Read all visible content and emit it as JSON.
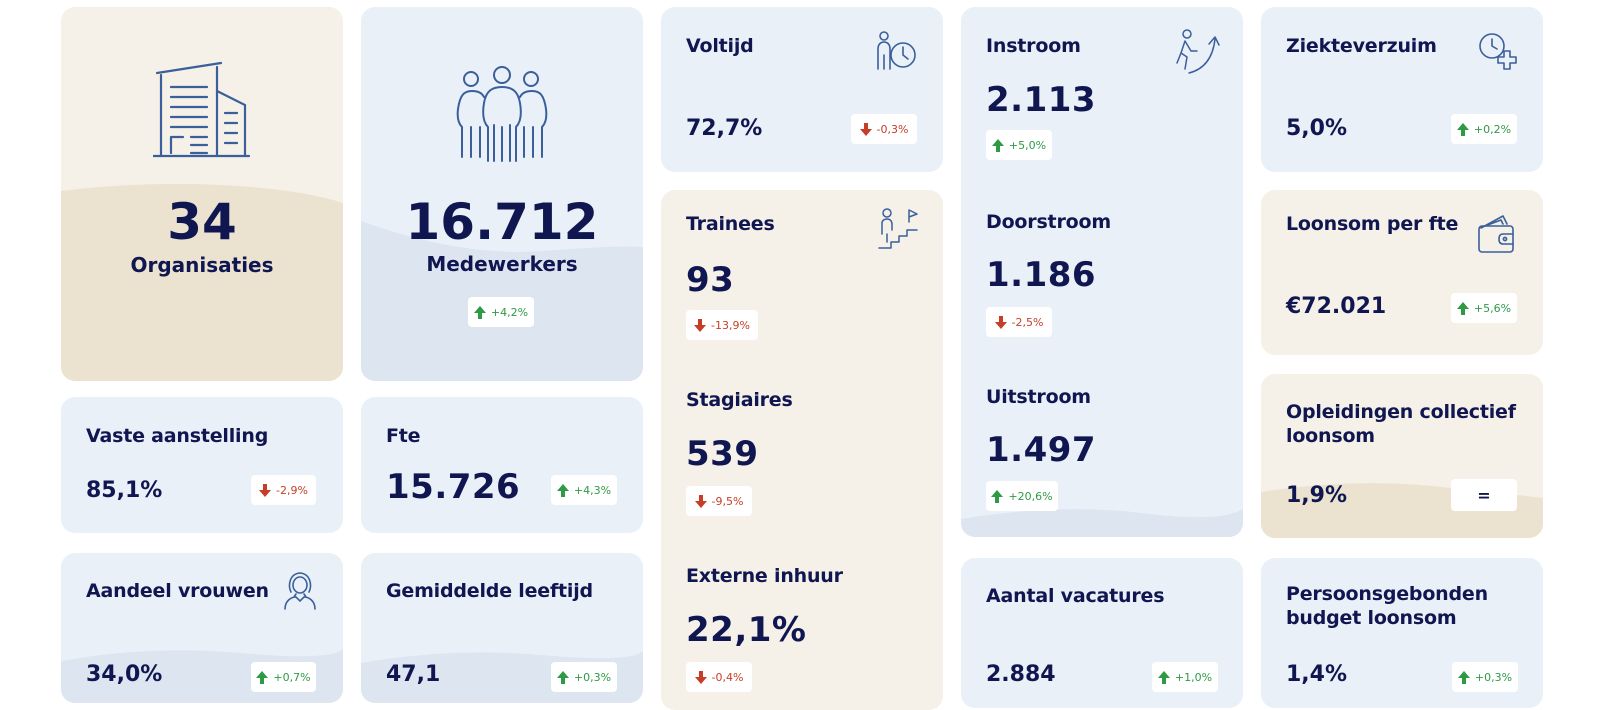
{
  "cards": {
    "organisaties": {
      "value": "34",
      "label": "Organisaties"
    },
    "medewerkers": {
      "value": "16.712",
      "label": "Medewerkers",
      "change": "+4,2%"
    },
    "voltijd": {
      "label": "Voltijd",
      "value": "72,7%",
      "change": "-0,3%"
    },
    "trainees": {
      "label": "Trainees",
      "value": "93",
      "change": "-13,9%"
    },
    "stagiaires": {
      "label": "Stagiaires",
      "value": "539",
      "change": "-9,5%"
    },
    "externe_inhuur": {
      "label": "Externe inhuur",
      "value": "22,1%",
      "change": "-0,4%"
    },
    "instroom": {
      "label": "Instroom",
      "value": "2.113",
      "change": "+5,0%"
    },
    "doorstroom": {
      "label": "Doorstroom",
      "value": "1.186",
      "change": "-2,5%"
    },
    "uitstroom": {
      "label": "Uitstroom",
      "value": "1.497",
      "change": "+20,6%"
    },
    "ziekteverzuim": {
      "label": "Ziekteverzuim",
      "value": "5,0%",
      "change": "+0,2%"
    },
    "loonsom": {
      "label": "Loonsom per fte",
      "value": "€72.021",
      "change": "+5,6%"
    },
    "opleidingen": {
      "label_line1": "Opleidingen collectief",
      "label_line2": "loonsom",
      "value": "1,9%",
      "change": "="
    },
    "vaste_aanstelling": {
      "label": "Vaste aanstelling",
      "value": "85,1%",
      "change": "-2,9%"
    },
    "fte": {
      "label": "Fte",
      "value": "15.726",
      "change": "+4,3%"
    },
    "aandeel_vrouwen": {
      "label": "Aandeel vrouwen",
      "value": "34,0%",
      "change": "+0,7%"
    },
    "gemiddelde_leeftijd": {
      "label": "Gemiddelde leeftijd",
      "value": "47,1",
      "change": "+0,3%"
    },
    "vacatures": {
      "label": "Aantal vacatures",
      "value": "2.884",
      "change": "+1,0%"
    },
    "pgb": {
      "label_line1": "Persoonsgebonden",
      "label_line2": "budget loonsom",
      "value": "1,4%",
      "change": "+0,3%"
    }
  },
  "colors": {
    "navy": "#0f1650",
    "card_blue": "#eaf0f8",
    "card_beige": "#f5f0e8",
    "up_green": "#2e9a46",
    "down_red": "#c63d28",
    "icon_blue": "#3a5f9a"
  },
  "icons": {
    "organisaties": "office-building-icon",
    "medewerkers": "people-group-icon",
    "voltijd": "person-clock-icon",
    "trainees": "person-climbing-stairs-icon",
    "instroom": "person-walking-arrow-icon",
    "ziekteverzuim": "clock-plus-icon",
    "loonsom": "wallet-icon",
    "aandeel_vrouwen": "woman-icon",
    "trend_up": "arrow-up-icon",
    "trend_down": "arrow-down-icon"
  }
}
